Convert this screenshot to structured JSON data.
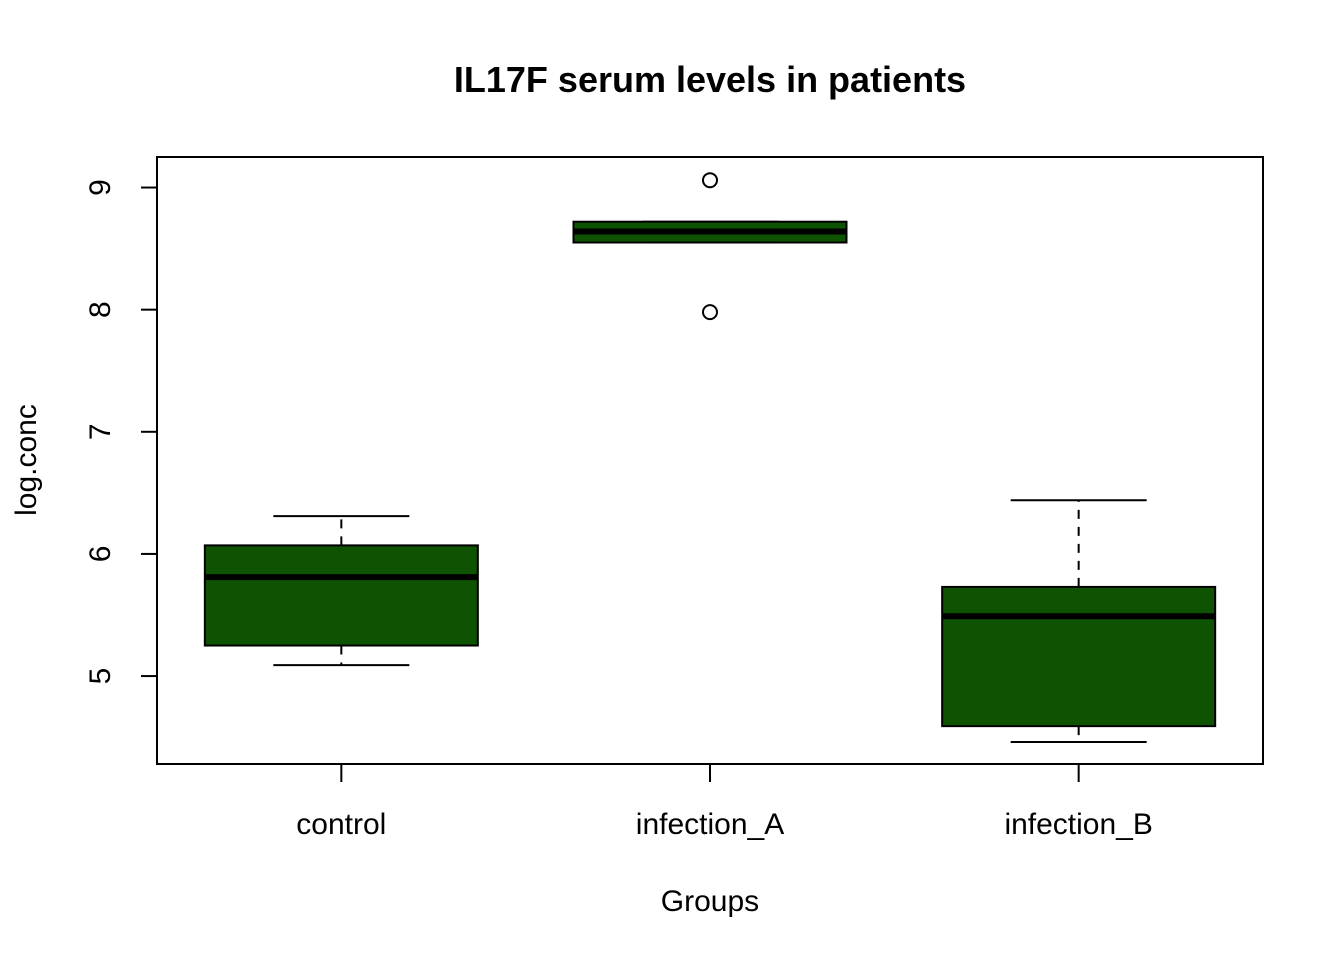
{
  "chart_data": {
    "type": "boxplot",
    "title": "IL17F serum levels in patients",
    "xlabel": "Groups",
    "ylabel": "log.conc",
    "categories": [
      "control",
      "infection_A",
      "infection_B"
    ],
    "y_ticks": [
      5,
      6,
      7,
      8,
      9
    ],
    "ylim": [
      4.28,
      9.25
    ],
    "grid": false,
    "box_color": "#0d5302",
    "boxes": [
      {
        "category": "control",
        "whisker_low": 5.09,
        "q1": 5.25,
        "median": 5.81,
        "q3": 6.07,
        "whisker_high": 6.31,
        "outliers": []
      },
      {
        "category": "infection_A",
        "whisker_low": 8.55,
        "q1": 8.55,
        "median": 8.64,
        "q3": 8.72,
        "whisker_high": 8.72,
        "outliers": [
          9.06,
          7.98
        ]
      },
      {
        "category": "infection_B",
        "whisker_low": 4.46,
        "q1": 4.59,
        "median": 5.49,
        "q3": 5.73,
        "whisker_high": 6.44,
        "outliers": []
      }
    ]
  }
}
